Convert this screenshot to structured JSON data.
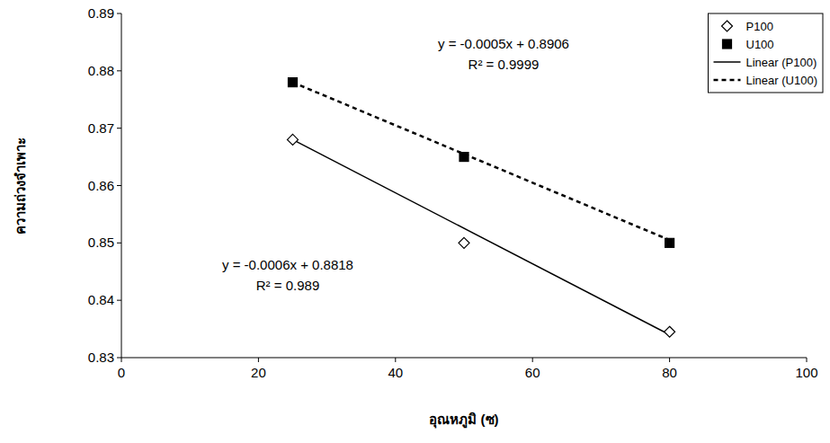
{
  "chart_data": {
    "type": "scatter",
    "x_label": "อุณหภูมิ (ซ)",
    "y_label": "ความถ่วงจำเพาะ",
    "xlim": [
      0,
      100
    ],
    "ylim": [
      0.83,
      0.89
    ],
    "xticks": [
      0,
      20,
      40,
      60,
      80,
      100
    ],
    "yticks": [
      0.83,
      0.84,
      0.85,
      0.86,
      0.87,
      0.88,
      0.89
    ],
    "grid": false,
    "legend": "top-right",
    "series": [
      {
        "name": "P100",
        "type": "scatter",
        "marker": "diamond-open",
        "color": "#000000",
        "x": [
          25,
          50,
          80
        ],
        "values": [
          0.868,
          0.85,
          0.8345
        ]
      },
      {
        "name": "U100",
        "type": "scatter",
        "marker": "square",
        "color": "#000000",
        "x": [
          25,
          50,
          80
        ],
        "values": [
          0.878,
          0.865,
          0.85
        ]
      },
      {
        "name": "Linear (P100)",
        "type": "line",
        "line_style": "solid",
        "color": "#000000",
        "x": [
          25,
          80
        ],
        "values": [
          0.868,
          0.834
        ]
      },
      {
        "name": "Linear (U100)",
        "type": "line",
        "line_style": "dashed",
        "color": "#000000",
        "x": [
          25,
          80
        ],
        "values": [
          0.878,
          0.8505
        ]
      }
    ],
    "annotations": [
      "y = -0.0005x + 0.8906",
      "R² = 0.9999",
      "y = -0.0006x + 0.8818",
      "R² = 0.989"
    ]
  }
}
